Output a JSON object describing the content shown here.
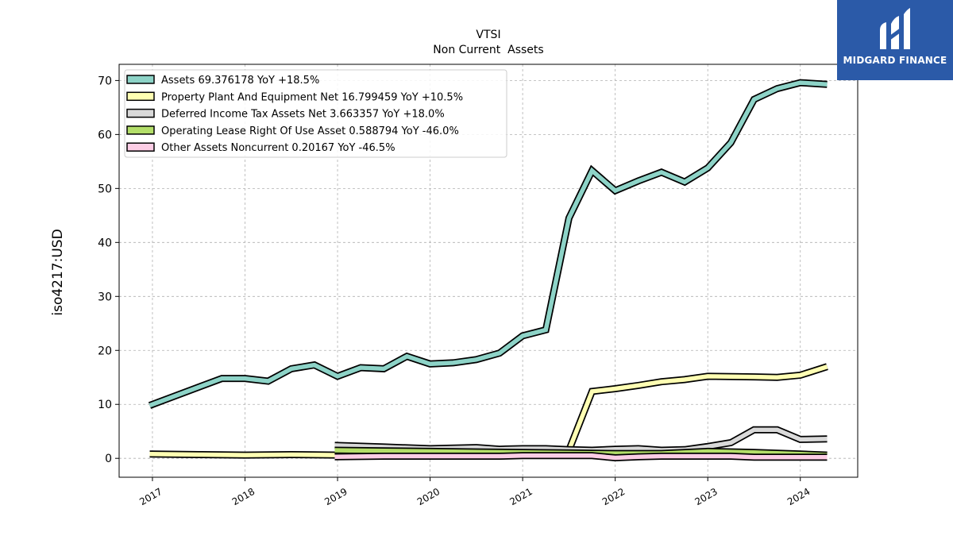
{
  "chart_data": {
    "type": "line",
    "title": "VTSI",
    "subtitle": "Non Current  Assets",
    "ylabel": "iso4217:USD",
    "xlabel": "",
    "ylim": [
      -3.5,
      73
    ],
    "xlim": [
      2016.64,
      2024.62
    ],
    "y_ticks": [
      0,
      10,
      20,
      30,
      40,
      50,
      60,
      70
    ],
    "x_ticks": [
      2017,
      2018,
      2019,
      2020,
      2021,
      2022,
      2023,
      2024
    ],
    "grid": true,
    "legend_position": "top-left",
    "series": [
      {
        "name": "Assets  69.376178 YoY +18.5%",
        "color": "#8dd3c7",
        "x": [
          2016.97,
          2017.75,
          2018.0,
          2018.25,
          2018.5,
          2018.75,
          2019.0,
          2019.25,
          2019.5,
          2019.75,
          2020.0,
          2020.25,
          2020.5,
          2020.75,
          2021.0,
          2021.25,
          2021.5,
          2021.75,
          2022.0,
          2022.25,
          2022.5,
          2022.75,
          2023.0,
          2023.25,
          2023.5,
          2023.75,
          2024.0,
          2024.29
        ],
        "values": [
          9.8,
          14.8,
          14.8,
          14.3,
          16.6,
          17.3,
          15.2,
          16.8,
          16.6,
          18.9,
          17.5,
          17.7,
          18.3,
          19.5,
          22.7,
          23.8,
          44.5,
          53.3,
          49.6,
          51.4,
          53.0,
          51.2,
          53.8,
          58.5,
          66.5,
          68.5,
          69.6,
          69.3
        ]
      },
      {
        "name": "Property Plant And Equipment Net  16.799459 YoY +10.5%",
        "color": "#ffffb3",
        "x": [
          2016.97,
          2017.5,
          2018.0,
          2018.5,
          2019.0,
          2019.5,
          2020.0,
          2020.5,
          2021.0,
          2021.25,
          2021.5,
          2021.75,
          2022.0,
          2022.25,
          2022.5,
          2022.75,
          2023.0,
          2023.5,
          2023.75,
          2024.0,
          2024.29
        ],
        "values": [
          0.8,
          0.7,
          0.6,
          0.7,
          0.6,
          0.6,
          0.6,
          0.6,
          0.7,
          0.8,
          1.5,
          12.4,
          12.9,
          13.5,
          14.2,
          14.6,
          15.2,
          15.1,
          15.0,
          15.4,
          17.0
        ]
      },
      {
        "name": "Deferred Income Tax Assets Net  3.663357 YoY +18.0%",
        "color": "#d9d9d9",
        "x": [
          2018.97,
          2019.5,
          2020.0,
          2020.5,
          2020.75,
          2021.0,
          2021.25,
          2021.5,
          2021.75,
          2022.0,
          2022.25,
          2022.5,
          2022.75,
          2023.0,
          2023.25,
          2023.5,
          2023.75,
          2024.0,
          2024.29
        ],
        "values": [
          2.4,
          2.1,
          1.8,
          2.0,
          1.7,
          1.8,
          1.8,
          1.6,
          1.5,
          1.7,
          1.8,
          1.5,
          1.6,
          2.2,
          2.9,
          5.3,
          5.3,
          3.5,
          3.6
        ]
      },
      {
        "name": "Operating Lease Right Of Use Asset  0.588794 YoY -46.0%",
        "color": "#b3de69",
        "x": [
          2018.97,
          2019.5,
          2020.0,
          2020.5,
          2021.0,
          2021.5,
          2022.0,
          2022.5,
          2023.0,
          2023.5,
          2024.0,
          2024.29
        ],
        "values": [
          1.5,
          1.4,
          1.3,
          1.2,
          1.1,
          1.0,
          0.9,
          0.9,
          1.3,
          1.1,
          0.8,
          0.6
        ]
      },
      {
        "name": "Other Assets Noncurrent  0.20167 YoY -46.5%",
        "color": "#fccde5",
        "x": [
          2018.97,
          2019.5,
          2020.0,
          2020.5,
          2020.75,
          2021.0,
          2021.5,
          2021.75,
          2022.0,
          2022.25,
          2022.5,
          2023.0,
          2023.25,
          2023.5,
          2023.75,
          2024.0,
          2024.29
        ],
        "values": [
          0.3,
          0.4,
          0.4,
          0.4,
          0.4,
          0.5,
          0.5,
          0.5,
          0.1,
          0.3,
          0.4,
          0.4,
          0.4,
          0.2,
          0.2,
          0.2,
          0.2
        ]
      }
    ]
  },
  "branding": {
    "logo_text": "MIDGARD FINANCE",
    "logo_icon": "midgard-m-logo-icon",
    "logo_color": "#2b5aa8"
  }
}
